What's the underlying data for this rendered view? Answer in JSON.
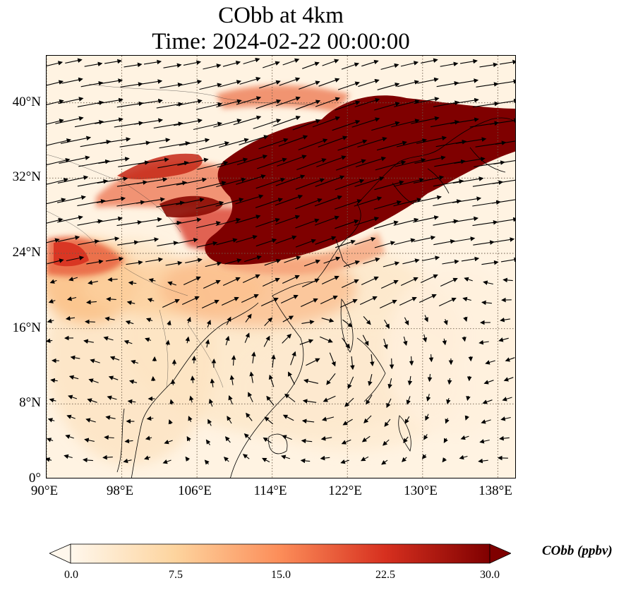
{
  "title": {
    "line1": "CObb at 4km",
    "line2": "Time: 2024-02-22 00:00:00"
  },
  "map": {
    "lon_range": [
      90,
      140
    ],
    "lat_range": [
      0,
      45
    ],
    "lat_ticks": [
      {
        "value": 40,
        "label": "40°N"
      },
      {
        "value": 32,
        "label": "32°N"
      },
      {
        "value": 24,
        "label": "24°N"
      },
      {
        "value": 16,
        "label": "16°N"
      },
      {
        "value": 8,
        "label": "8°N"
      },
      {
        "value": 0,
        "label": "0°"
      }
    ],
    "lon_ticks": [
      {
        "value": 90,
        "label": "90°E"
      },
      {
        "value": 98,
        "label": "98°E"
      },
      {
        "value": 106,
        "label": "106°E"
      },
      {
        "value": 114,
        "label": "114°E"
      },
      {
        "value": 122,
        "label": "122°E"
      },
      {
        "value": 130,
        "label": "130°E"
      },
      {
        "value": 138,
        "label": "138°E"
      }
    ],
    "gridlines": "dotted",
    "vectors": "wind",
    "colormap": "OrRd"
  },
  "colorbar": {
    "title": "CObb (ppbv)",
    "ticks": [
      "0.0",
      "7.5",
      "15.0",
      "22.5",
      "30.0"
    ],
    "min": 0,
    "max": 30,
    "extend": "both",
    "colors": [
      "#fff7ec",
      "#fdd49e",
      "#fc8d59",
      "#d7301f",
      "#7f0000"
    ]
  }
}
